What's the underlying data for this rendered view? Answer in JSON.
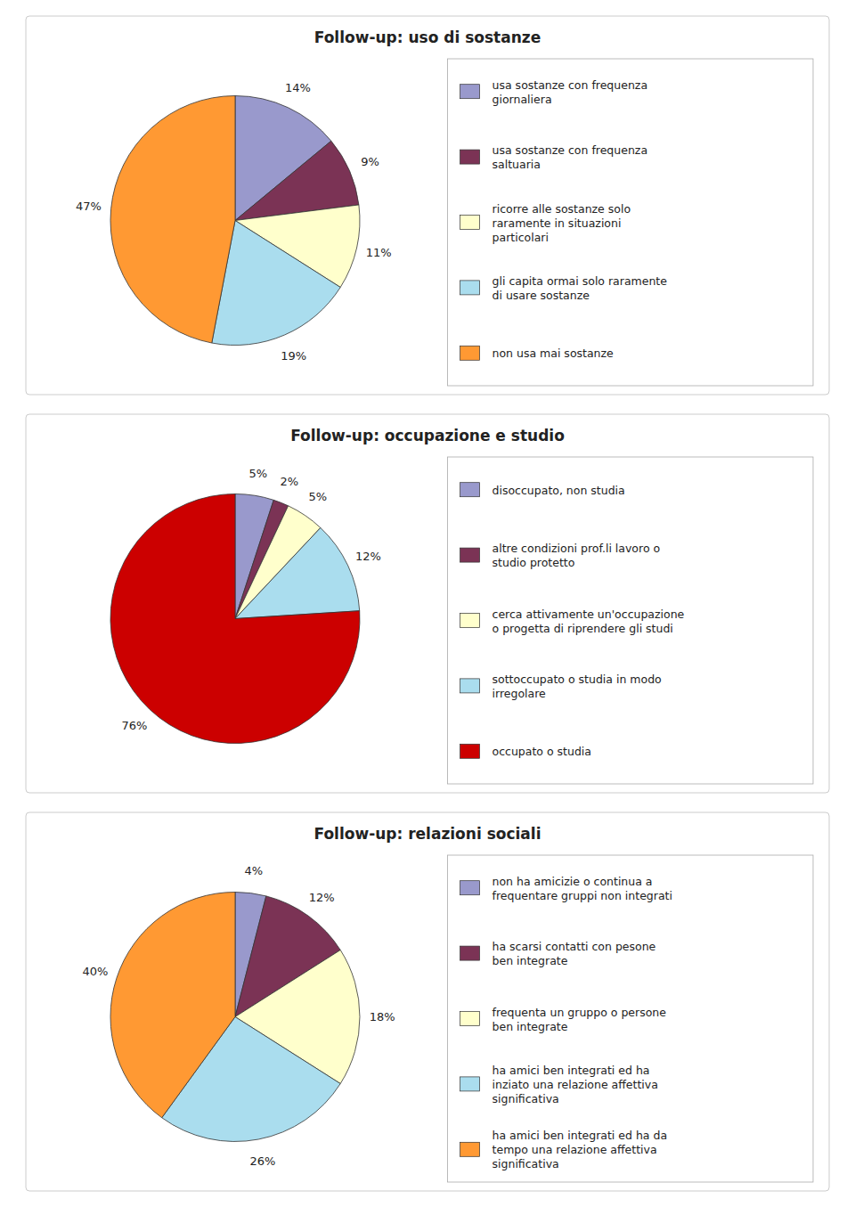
{
  "chart_data": [
    {
      "type": "pie",
      "title": "Follow-up: uso di sostanze",
      "categories": [
        "usa sostanze con frequenza\ngiornaliera",
        "usa sostanze con frequenza\nsaltuaria",
        "ricorre alle sostanze solo\nraramente in situazioni\nparticolari",
        "gli capita ormai solo raramente\ndi usare sostanze",
        "non usa mai sostanze"
      ],
      "values": [
        14,
        9,
        11,
        19,
        47
      ],
      "value_labels": [
        "14%",
        "9%",
        "11%",
        "19%",
        "47%"
      ],
      "colors": [
        "#9999cc",
        "#7b3355",
        "#ffffcc",
        "#aaddee",
        "#ff9933"
      ],
      "data_labels": true,
      "legend": "right"
    },
    {
      "type": "pie",
      "title": "Follow-up: occupazione e studio",
      "categories": [
        "disoccupato, non studia",
        "altre condizioni prof.li lavoro o\nstudio protetto",
        "cerca attivamente un'occupazione\no progetta di riprendere gli studi",
        "sottoccupato o studia in modo\nirregolare",
        "occupato o studia"
      ],
      "values": [
        5,
        2,
        5,
        12,
        76
      ],
      "value_labels": [
        "5%",
        "2%",
        "5%",
        "12%",
        "76%"
      ],
      "colors": [
        "#9999cc",
        "#7b3355",
        "#ffffcc",
        "#aaddee",
        "#cc0000"
      ],
      "data_labels": true,
      "legend": "right"
    },
    {
      "type": "pie",
      "title": "Follow-up: relazioni sociali",
      "categories": [
        "non ha amicizie o continua a\nfrequentare gruppi non integrati",
        "ha scarsi contatti con pesone\nben integrate",
        "frequenta un gruppo o persone\nben integrate",
        "ha amici ben integrati ed ha\ninziato una relazione affettiva\nsignificativa",
        "ha amici ben integrati ed ha da\ntempo una relazione affettiva\nsignificativa"
      ],
      "values": [
        4,
        12,
        18,
        26,
        40
      ],
      "value_labels": [
        "4%",
        "12%",
        "18%",
        "26%",
        "40%"
      ],
      "colors": [
        "#9999cc",
        "#7b3355",
        "#ffffcc",
        "#aaddee",
        "#ff9933"
      ],
      "data_labels": true,
      "legend": "right"
    }
  ]
}
